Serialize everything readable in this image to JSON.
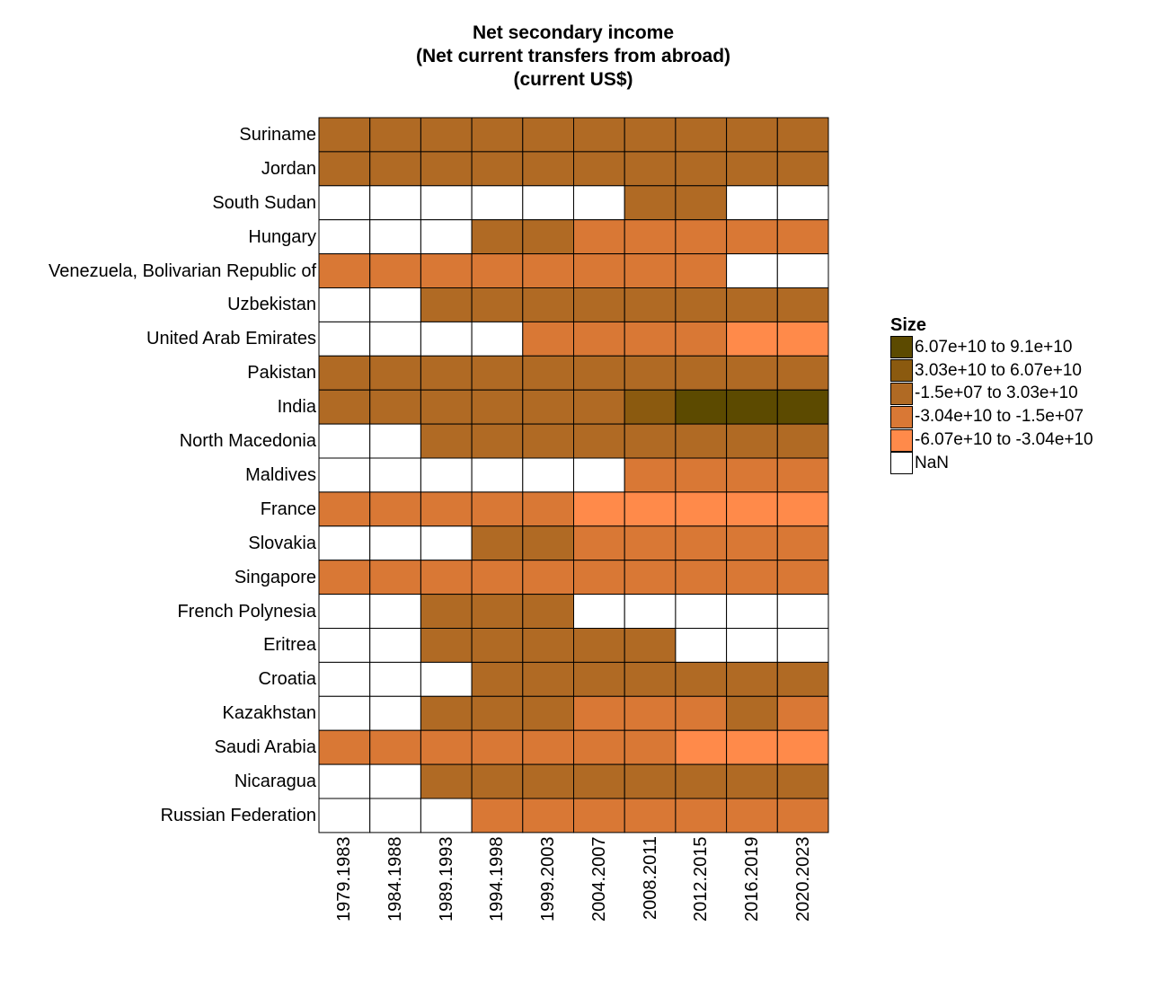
{
  "chart_data": {
    "type": "heatmap",
    "title_lines": [
      "Net secondary income",
      "(Net current transfers from abroad)",
      "(current US$)"
    ],
    "xlabel": "",
    "ylabel": "",
    "categories_x": [
      "1979.1983",
      "1984.1988",
      "1989.1993",
      "1994.1998",
      "1999.2003",
      "2004.2007",
      "2008.2011",
      "2012.2015",
      "2016.2019",
      "2020.2023"
    ],
    "categories_y": [
      "Suriname",
      "Jordan",
      "South Sudan",
      "Hungary",
      "Venezuela, Bolivarian Republic of",
      "Uzbekistan",
      "United Arab Emirates",
      "Pakistan",
      "India",
      "North Macedonia",
      "Maldives",
      "France",
      "Slovakia",
      "Singapore",
      "French Polynesia",
      "Eritrea",
      "Croatia",
      "Kazakhstan",
      "Saudi Arabia",
      "Nicaragua",
      "Russian Federation"
    ],
    "legend": {
      "title": "Size",
      "position": "right",
      "bins": [
        {
          "label": "6.07e+10 to 9.1e+10",
          "color": "#5c4a00"
        },
        {
          "label": "3.03e+10 to 6.07e+10",
          "color": "#8b5a0f"
        },
        {
          "label": "-1.5e+07 to 3.03e+10",
          "color": "#b06a24"
        },
        {
          "label": "-3.04e+10 to -1.5e+07",
          "color": "#d97835"
        },
        {
          "label": "-6.07e+10 to -3.04e+10",
          "color": "#ff8a4a"
        },
        {
          "label": "NaN",
          "color": "#ffffff"
        }
      ]
    },
    "bin_matrix": [
      [
        2,
        2,
        2,
        2,
        2,
        2,
        2,
        2,
        2,
        2
      ],
      [
        2,
        2,
        2,
        2,
        2,
        2,
        2,
        2,
        2,
        2
      ],
      [
        5,
        5,
        5,
        5,
        5,
        5,
        2,
        2,
        5,
        5
      ],
      [
        5,
        5,
        5,
        2,
        2,
        3,
        3,
        3,
        3,
        3
      ],
      [
        3,
        3,
        3,
        3,
        3,
        3,
        3,
        3,
        5,
        5
      ],
      [
        5,
        5,
        2,
        2,
        2,
        2,
        2,
        2,
        2,
        2
      ],
      [
        5,
        5,
        5,
        5,
        3,
        3,
        3,
        3,
        4,
        4
      ],
      [
        2,
        2,
        2,
        2,
        2,
        2,
        2,
        2,
        2,
        2
      ],
      [
        2,
        2,
        2,
        2,
        2,
        2,
        1,
        0,
        0,
        0
      ],
      [
        5,
        5,
        2,
        2,
        2,
        2,
        2,
        2,
        2,
        2
      ],
      [
        5,
        5,
        5,
        5,
        5,
        5,
        3,
        3,
        3,
        3
      ],
      [
        3,
        3,
        3,
        3,
        3,
        4,
        4,
        4,
        4,
        4
      ],
      [
        5,
        5,
        5,
        2,
        2,
        3,
        3,
        3,
        3,
        3
      ],
      [
        3,
        3,
        3,
        3,
        3,
        3,
        3,
        3,
        3,
        3
      ],
      [
        5,
        5,
        2,
        2,
        2,
        5,
        5,
        5,
        5,
        5
      ],
      [
        5,
        5,
        2,
        2,
        2,
        2,
        2,
        5,
        5,
        5
      ],
      [
        5,
        5,
        5,
        2,
        2,
        2,
        2,
        2,
        2,
        2
      ],
      [
        5,
        5,
        2,
        2,
        2,
        3,
        3,
        3,
        2,
        3
      ],
      [
        3,
        3,
        3,
        3,
        3,
        3,
        3,
        4,
        4,
        4
      ],
      [
        5,
        5,
        2,
        2,
        2,
        2,
        2,
        2,
        2,
        2
      ],
      [
        5,
        5,
        5,
        3,
        3,
        3,
        3,
        3,
        3,
        3
      ]
    ]
  }
}
